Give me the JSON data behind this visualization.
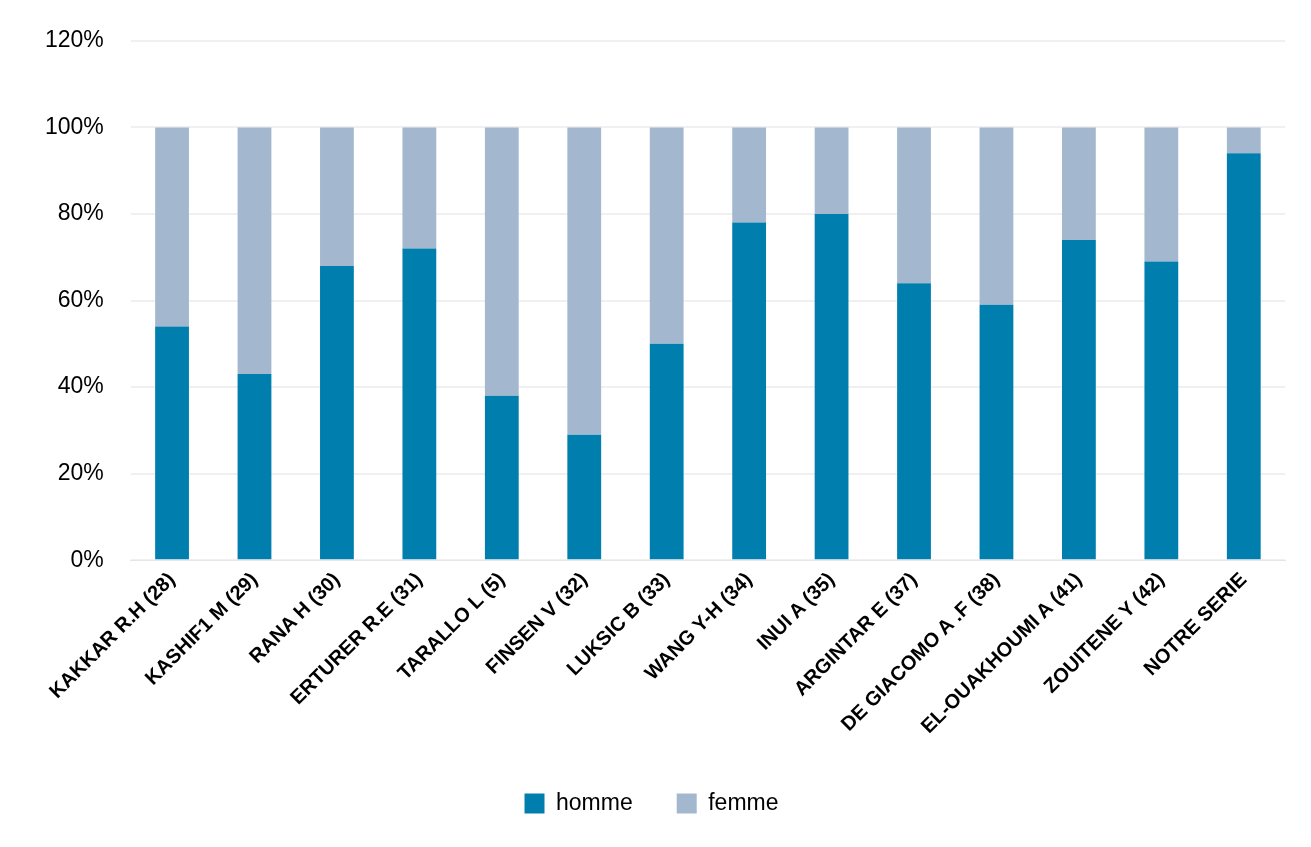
{
  "chart_data": {
    "type": "bar",
    "stacked": true,
    "categories": [
      "KAKKAR R.H (28)",
      "KASHIF1 M (29)",
      "RANA H (30)",
      "ERTURER R.E (31)",
      "TARALLO L (5)",
      "FINSEN V (32)",
      "LUKSIC B (33)",
      "WANG Y-H (34)",
      "INUI A (35)",
      "ARGINTAR E (37)",
      "DE GIACOMO A .F (38)",
      "EL-OUAKHOUMI A (41)",
      "ZOUITENE Y (42)",
      "NOTRE SERIE"
    ],
    "series": [
      {
        "name": "homme",
        "color": "#007fae",
        "values": [
          54,
          43,
          68,
          72,
          38,
          29,
          50,
          78,
          80,
          64,
          59,
          74,
          69,
          94
        ]
      },
      {
        "name": "femme",
        "color": "#a3b8cf",
        "values": [
          46,
          57,
          32,
          28,
          62,
          71,
          50,
          22,
          20,
          36,
          41,
          26,
          31,
          6
        ]
      }
    ],
    "ylim": [
      0,
      120
    ],
    "yticks": [
      {
        "value": 0,
        "label": "0%"
      },
      {
        "value": 20,
        "label": "20%"
      },
      {
        "value": 40,
        "label": "40%"
      },
      {
        "value": 60,
        "label": "60%"
      },
      {
        "value": 80,
        "label": "80%"
      },
      {
        "value": 100,
        "label": "100%"
      },
      {
        "value": 120,
        "label": "120%"
      }
    ],
    "grid": "y",
    "legend": "bottom"
  }
}
